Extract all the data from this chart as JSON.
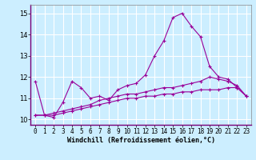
{
  "xlabel": "Windchill (Refroidissement éolien,°C)",
  "ylabel": "",
  "bg_color": "#cceeff",
  "grid_color": "#ffffff",
  "line_color": "#990099",
  "x_values": [
    0,
    1,
    2,
    3,
    4,
    5,
    6,
    7,
    8,
    9,
    10,
    11,
    12,
    13,
    14,
    15,
    16,
    17,
    18,
    19,
    20,
    21,
    22,
    23
  ],
  "line1": [
    11.8,
    10.2,
    10.1,
    10.8,
    11.8,
    11.5,
    11.0,
    11.1,
    10.9,
    11.4,
    11.6,
    11.7,
    12.1,
    13.0,
    13.7,
    14.8,
    15.0,
    14.4,
    13.9,
    12.5,
    12.0,
    11.9,
    11.5,
    11.1
  ],
  "line2": [
    10.2,
    10.2,
    10.2,
    10.3,
    10.4,
    10.5,
    10.6,
    10.7,
    10.8,
    10.9,
    11.0,
    11.0,
    11.1,
    11.1,
    11.2,
    11.2,
    11.3,
    11.3,
    11.4,
    11.4,
    11.4,
    11.5,
    11.5,
    11.1
  ],
  "line3": [
    10.2,
    10.2,
    10.3,
    10.4,
    10.5,
    10.6,
    10.7,
    10.9,
    11.0,
    11.1,
    11.2,
    11.2,
    11.3,
    11.4,
    11.5,
    11.5,
    11.6,
    11.7,
    11.8,
    12.0,
    11.9,
    11.8,
    11.6,
    11.1
  ],
  "ylim": [
    9.75,
    15.4
  ],
  "xlim": [
    -0.5,
    23.5
  ],
  "yticks": [
    10,
    11,
    12,
    13,
    14,
    15
  ],
  "xticks": [
    0,
    1,
    2,
    3,
    4,
    5,
    6,
    7,
    8,
    9,
    10,
    11,
    12,
    13,
    14,
    15,
    16,
    17,
    18,
    19,
    20,
    21,
    22,
    23
  ],
  "marker": "+",
  "markersize": 3,
  "linewidth": 0.8,
  "tick_fontsize": 5.5,
  "xlabel_fontsize": 6.0
}
